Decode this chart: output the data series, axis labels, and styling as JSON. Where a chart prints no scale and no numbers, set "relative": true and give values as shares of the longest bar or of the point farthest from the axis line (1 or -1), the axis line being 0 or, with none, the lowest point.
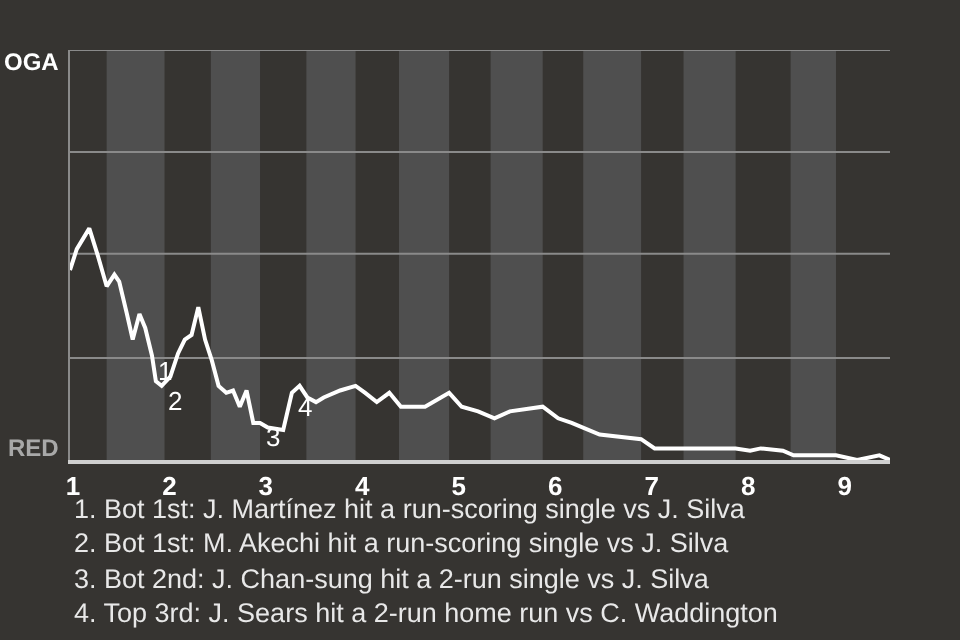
{
  "chart_data": {
    "type": "line",
    "relative": true,
    "x": [
      0.97,
      1.04,
      1.17,
      1.26,
      1.35,
      1.43,
      1.48,
      1.56,
      1.62,
      1.69,
      1.75,
      1.82,
      1.86,
      1.92,
      2.01,
      2.09,
      2.16,
      2.23,
      2.3,
      2.37,
      2.44,
      2.51,
      2.59,
      2.66,
      2.73,
      2.8,
      2.87,
      2.94,
      3.02,
      3.18,
      3.27,
      3.35,
      3.43,
      3.52,
      3.6,
      3.77,
      3.93,
      4.03,
      4.15,
      4.28,
      4.4,
      4.65,
      4.9,
      5.03,
      5.2,
      5.37,
      5.53,
      5.87,
      6.03,
      6.17,
      6.46,
      6.89,
      7.03,
      7.37,
      7.87,
      8.02,
      8.13,
      8.36,
      8.47,
      8.91,
      9.13,
      9.36,
      9.47
    ],
    "series": [
      {
        "color": "#ffffff",
        "values": [
          0.82,
          0.91,
          1,
          0.88,
          0.75,
          0.8,
          0.77,
          0.63,
          0.52,
          0.63,
          0.57,
          0.45,
          0.34,
          0.32,
          0.36,
          0.46,
          0.52,
          0.54,
          0.66,
          0.52,
          0.43,
          0.32,
          0.29,
          0.3,
          0.23,
          0.3,
          0.16,
          0.16,
          0.14,
          0.13,
          0.29,
          0.32,
          0.27,
          0.25,
          0.27,
          0.3,
          0.32,
          0.29,
          0.25,
          0.29,
          0.23,
          0.23,
          0.29,
          0.23,
          0.21,
          0.18,
          0.21,
          0.23,
          0.18,
          0.16,
          0.11,
          0.09,
          0.05,
          0.05,
          0.05,
          0.04,
          0.05,
          0.04,
          0.02,
          0.02,
          0,
          0.02,
          0
        ]
      }
    ],
    "xlim": [
      0.97,
      9.47
    ],
    "xticks": [
      1,
      2,
      3,
      4,
      5,
      6,
      7,
      8,
      9
    ],
    "ref_lines": [
      {
        "axis": "y",
        "value": 0.44,
        "color": "#8a8a8a"
      },
      {
        "axis": "y",
        "value": 0.89,
        "color": "#8a8a8a"
      },
      {
        "axis": "y",
        "value": 1.33,
        "color": "#8a8a8a"
      },
      {
        "axis": "y",
        "value": 1.77,
        "color": "#8a8a8a"
      }
    ],
    "marker": "none",
    "line_style": "solid",
    "bands": [
      {
        "axis": "x",
        "from": 1.35,
        "to": 1.95,
        "color": "#4f4f4f"
      },
      {
        "axis": "x",
        "from": 2.43,
        "to": 2.94,
        "color": "#4f4f4f"
      },
      {
        "axis": "x",
        "from": 3.42,
        "to": 3.93,
        "color": "#4f4f4f"
      },
      {
        "axis": "x",
        "from": 4.38,
        "to": 4.9,
        "color": "#4f4f4f"
      },
      {
        "axis": "x",
        "from": 5.33,
        "to": 5.87,
        "color": "#4f4f4f"
      },
      {
        "axis": "x",
        "from": 6.29,
        "to": 6.89,
        "color": "#4f4f4f"
      },
      {
        "axis": "x",
        "from": 7.33,
        "to": 7.87,
        "color": "#4f4f4f"
      },
      {
        "axis": "x",
        "from": 8.44,
        "to": 8.91,
        "color": "#4f4f4f"
      }
    ],
    "annotations": [
      {
        "text": "1",
        "x": 1.82,
        "y": 0.45
      },
      {
        "text": "2",
        "x": 1.92,
        "y": 0.32
      },
      {
        "text": "3",
        "x": 2.94,
        "y": 0.16
      },
      {
        "text": "4",
        "x": 3.27,
        "y": 0.29
      },
      "OGA",
      "RED",
      "1. Bot 1st: J. Martínez hit a run-scoring single vs J. Silva",
      "2. Bot 1st: M. Akechi hit a run-scoring single vs J. Silva",
      "3. Bot 2nd: J. Chan-sung hit a 2-run single vs J. Silva",
      "4. Top 3rd: J. Sears hit a 2-run home run vs C. Waddington"
    ]
  }
}
